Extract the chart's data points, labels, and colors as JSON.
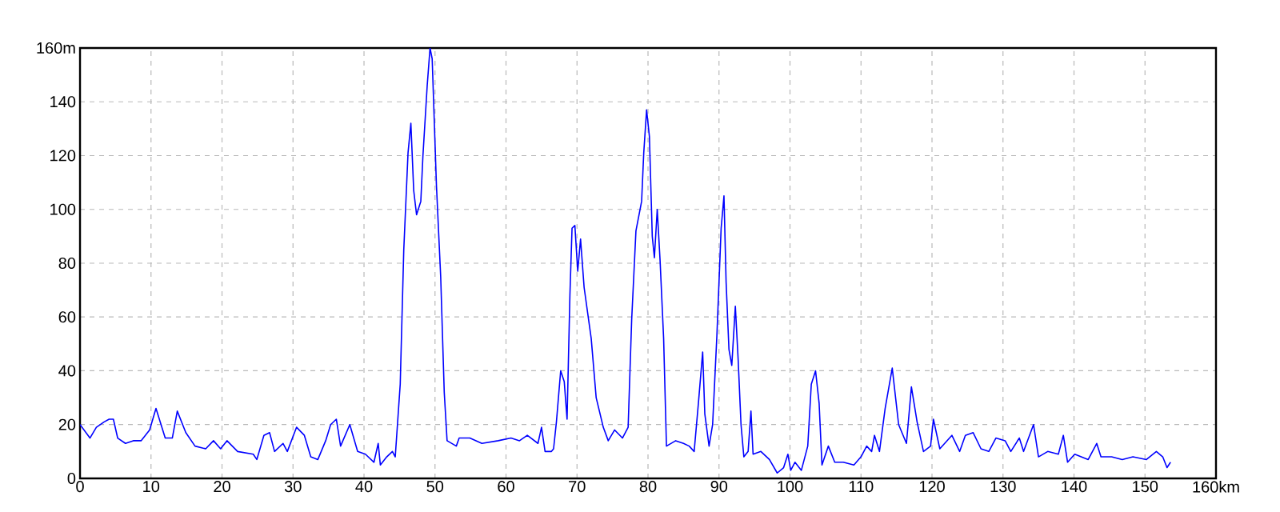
{
  "chart_data": {
    "type": "line",
    "grid": true,
    "xlim": [
      0,
      160
    ],
    "ylim": [
      0,
      160
    ],
    "xticks": [
      0,
      10,
      20,
      30,
      40,
      50,
      60,
      70,
      80,
      90,
      100,
      110,
      120,
      130,
      140,
      150,
      {
        "value": 160,
        "label": "160km"
      }
    ],
    "yticks": [
      0,
      20,
      40,
      60,
      80,
      100,
      120,
      140,
      {
        "value": 160,
        "label": "160m"
      }
    ],
    "series": [
      {
        "color": "#0000ff",
        "x": [
          0,
          1.4,
          2.3,
          3.4,
          4.1,
          4.7,
          5.3,
          6.4,
          7.5,
          8.6,
          9.8,
          10.7,
          12.0,
          13.0,
          13.7,
          14.9,
          16.2,
          17.7,
          18.8,
          19.8,
          20.7,
          22.2,
          24.4,
          24.9,
          25.9,
          26.7,
          27.4,
          28.6,
          29.2,
          30.5,
          31.6,
          32.5,
          33.5,
          34.6,
          35.3,
          36.1,
          36.7,
          38.0,
          39.1,
          40.2,
          41.4,
          42.0,
          42.3,
          43.2,
          44.0,
          44.4,
          45.1,
          45.6,
          46.2,
          46.6,
          47.0,
          47.4,
          48.0,
          48.3,
          48.9,
          49.3,
          49.6,
          50.2,
          50.8,
          51.3,
          51.7,
          53.0,
          53.4,
          54.9,
          56.6,
          58.9,
          60.7,
          61.9,
          63.0,
          64.5,
          65.0,
          65.5,
          66.4,
          66.7,
          67.1,
          67.7,
          68.2,
          68.6,
          69.0,
          69.3,
          69.7,
          70.1,
          70.5,
          71.0,
          72.0,
          72.7,
          73.7,
          74.4,
          75.3,
          76.4,
          77.2,
          77.7,
          78.3,
          79.1,
          79.4,
          79.8,
          80.2,
          80.6,
          80.9,
          81.3,
          81.7,
          82.2,
          82.6,
          83.9,
          85.0,
          85.8,
          86.5,
          87.1,
          87.7,
          88.0,
          88.6,
          89.1,
          89.7,
          90.3,
          90.7,
          91.0,
          91.4,
          91.8,
          92.3,
          92.7,
          93.1,
          93.5,
          94.1,
          94.5,
          94.8,
          95.9,
          97.1,
          98.2,
          99.1,
          99.7,
          100.1,
          100.7,
          101.6,
          102.5,
          103.0,
          103.6,
          104.1,
          104.5,
          105.4,
          106.3,
          107.5,
          109.0,
          110.0,
          110.8,
          111.5,
          111.9,
          112.6,
          113.4,
          114.4,
          115.3,
          116.4,
          117.1,
          117.9,
          118.8,
          119.8,
          120.2,
          121.1,
          122.8,
          123.9,
          124.7,
          125.8,
          126.9,
          128.0,
          129.0,
          130.3,
          131.1,
          132.3,
          132.9,
          134.3,
          135.0,
          136.3,
          137.8,
          138.5,
          139.1,
          140.1,
          142.0,
          143.2,
          143.8,
          145.3,
          146.8,
          148.3,
          150.2,
          151.6,
          152.5,
          153.1,
          153.6
        ],
        "values": [
          20,
          15,
          19,
          21,
          22,
          22,
          15,
          13,
          14,
          14,
          18,
          26,
          15,
          15,
          25,
          17,
          12,
          11,
          14,
          11,
          14,
          10,
          9,
          7,
          16,
          17,
          10,
          13,
          10,
          19,
          16,
          8,
          7,
          14,
          20,
          22,
          12,
          20,
          10,
          9,
          6,
          13,
          5,
          8,
          10,
          8,
          35,
          85,
          121,
          132,
          107,
          98,
          103,
          120,
          146,
          160,
          156,
          109,
          75,
          32,
          14,
          12,
          15,
          15,
          13,
          14,
          15,
          14,
          16,
          13,
          19,
          10,
          10,
          11,
          21,
          40,
          36,
          22,
          68,
          93,
          94,
          77,
          89,
          71,
          52,
          30,
          19,
          14,
          18,
          15,
          19,
          59,
          92,
          103,
          121,
          137,
          127,
          90,
          82,
          100,
          81,
          52,
          12,
          14,
          13,
          12,
          10,
          28,
          47,
          24,
          12,
          20,
          53,
          93,
          105,
          73,
          48,
          42,
          64,
          44,
          20,
          8,
          10,
          25,
          9,
          10,
          7,
          2,
          4,
          9,
          3,
          6,
          3,
          12,
          35,
          40,
          28,
          5,
          12,
          6,
          6,
          5,
          8,
          12,
          10,
          16,
          10,
          26,
          41,
          20,
          13,
          34,
          21,
          10,
          12,
          22,
          11,
          16,
          10,
          16,
          17,
          11,
          10,
          15,
          14,
          10,
          15,
          10,
          20,
          8,
          10,
          9,
          16,
          6,
          9,
          7,
          13,
          8,
          8,
          7,
          8,
          7,
          10,
          8,
          4,
          6
        ]
      }
    ]
  }
}
